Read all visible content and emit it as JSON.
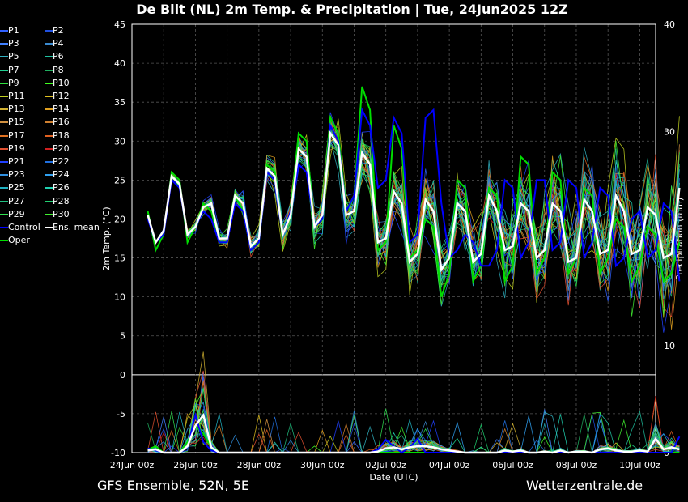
{
  "title": "De Bilt  (NL)  2m Temp. & Precipitation | Tue, 24Jun2025 12Z",
  "footer_left": "GFS Ensemble, 52N, 5E",
  "footer_right": "Wetterzentrale.de",
  "colors": {
    "background": "#000000",
    "mean": "#ffffff",
    "control": "#0000ff",
    "oper": "#00dd00"
  },
  "chart_data": {
    "type": "line",
    "x_unit": "hours since 24Jun 00z (3-hourly)",
    "x_ticks": [
      "24Jun 00z",
      "26Jun 00z",
      "28Jun 00z",
      "30Jun 00z",
      "02Jul 00z",
      "04Jul 00z",
      "06Jul 00z",
      "08Jul 00z",
      "10Jul 00z"
    ],
    "xlabel": "Date (UTC)",
    "ylabel_left": "2m Temp. (°C)",
    "ylabel_right": "Precipitation (mm)",
    "ylim_left": [
      -10,
      45
    ],
    "ylim_right": [
      0,
      40
    ],
    "yticks_left": [
      "45",
      "40",
      "35",
      "30",
      "25",
      "20",
      "15",
      "10",
      "5",
      "0",
      "-5",
      "-10"
    ],
    "yticks_right": [
      "40",
      "30",
      "20",
      "10",
      "0"
    ],
    "grid": true,
    "start_hour": 12,
    "temperature": {
      "control": [
        20,
        17,
        18,
        25,
        24,
        18,
        19,
        21,
        20,
        17,
        17,
        22,
        21,
        16,
        17,
        26,
        25,
        18,
        21,
        27,
        26,
        19,
        20,
        32,
        30,
        21,
        23,
        34,
        32,
        24,
        25,
        33,
        31,
        17,
        18,
        33,
        34,
        22,
        15,
        16,
        18,
        17,
        14,
        14,
        16,
        25,
        24,
        15,
        17,
        25,
        25,
        16,
        17,
        25,
        24,
        15,
        17,
        24,
        23,
        14,
        15,
        20,
        21,
        15,
        16,
        22,
        21,
        12,
        14,
        19
      ],
      "oper": [
        21,
        16,
        18,
        26,
        25,
        17,
        19,
        22,
        21,
        17,
        17,
        23,
        21,
        16,
        17,
        27,
        26,
        18,
        21,
        31,
        30,
        19,
        20,
        33,
        31,
        21,
        23,
        37,
        34,
        16,
        17,
        32,
        29,
        15,
        16,
        20,
        19,
        10,
        13,
        25,
        24,
        12,
        14,
        24,
        23,
        12,
        14,
        28,
        27,
        13,
        15,
        26,
        25,
        13,
        15,
        24,
        23,
        13,
        15,
        20,
        19,
        12,
        14,
        19,
        18,
        12,
        13,
        17,
        16,
        21
      ],
      "mean": [
        20.5,
        17,
        18.5,
        25.5,
        24.5,
        18,
        19,
        21.5,
        22,
        17.5,
        17.5,
        23,
        22,
        16.5,
        17.5,
        26.5,
        25.5,
        18,
        20.5,
        29,
        28,
        19,
        20.5,
        31,
        29.5,
        20.5,
        21,
        28.5,
        27,
        17,
        17.5,
        23.5,
        22,
        14.5,
        15.5,
        22.5,
        21,
        13.5,
        15,
        22,
        21,
        14.5,
        15.5,
        23,
        21,
        16,
        16.5,
        22,
        21,
        15,
        16,
        22,
        21,
        14.5,
        15,
        22.5,
        21,
        15.5,
        16,
        23,
        21,
        15.5,
        16,
        21.5,
        20.5,
        15,
        15.5,
        24
      ]
    },
    "precipitation": {
      "control": [
        0.4,
        0.2,
        0,
        0,
        0,
        0.5,
        3.5,
        1,
        0.2,
        0,
        0,
        0,
        0,
        0,
        0,
        0,
        0,
        0,
        0,
        0,
        0,
        0,
        0,
        0,
        0,
        0,
        0,
        0,
        0,
        0.3,
        1.2,
        0.6,
        0,
        0.5,
        1.3,
        0,
        0,
        0,
        0,
        0,
        0,
        0,
        0,
        0,
        0,
        0,
        0,
        0,
        0,
        0,
        0,
        0,
        0,
        0,
        0,
        0,
        0,
        0,
        0,
        0,
        0,
        0,
        0,
        0,
        0,
        0,
        0,
        1.5,
        0.5,
        3
      ],
      "oper": [
        0.3,
        0.6,
        0,
        0,
        0,
        1,
        2.5,
        1.8,
        0.5,
        0,
        0,
        0,
        0,
        0,
        0,
        0,
        0,
        0,
        0,
        0,
        0,
        0,
        0,
        0,
        0,
        0,
        0,
        0,
        0,
        0,
        0,
        0,
        0,
        0,
        0,
        0,
        0,
        0,
        0,
        0,
        0,
        0,
        0,
        0,
        0,
        0,
        0,
        0,
        0,
        0,
        0,
        0,
        0,
        0,
        0,
        0,
        0,
        0,
        0,
        0,
        0,
        0,
        0,
        0,
        0,
        0,
        0,
        0,
        0,
        0
      ],
      "mean": [
        0.2,
        0.3,
        0,
        0,
        0,
        0.6,
        2.5,
        3.5,
        0.5,
        0,
        0,
        0,
        0,
        0,
        0,
        0,
        0,
        0,
        0,
        0,
        0,
        0,
        0,
        0,
        0,
        0,
        0,
        0,
        0,
        0.1,
        0.4,
        0.5,
        0.3,
        0.5,
        0.6,
        0.6,
        0.5,
        0.3,
        0.2,
        0.1,
        0,
        0,
        0,
        0,
        0,
        0.2,
        0.1,
        0.2,
        0,
        0,
        0.1,
        0,
        0.2,
        0,
        0.1,
        0.1,
        0,
        0.3,
        0.4,
        0.2,
        0.1,
        0.1,
        0.2,
        0.1,
        1.3,
        0.3,
        0.5,
        0.3,
        0.4,
        0.3
      ]
    },
    "series": [
      "P1",
      "P2",
      "P3",
      "P4",
      "P5",
      "P6",
      "P7",
      "P8",
      "P9",
      "P10",
      "P11",
      "P12",
      "P13",
      "P14",
      "P15",
      "P16",
      "P17",
      "P18",
      "P19",
      "P20",
      "P21",
      "P22",
      "P23",
      "P24",
      "P25",
      "P26",
      "P27",
      "P28",
      "P29",
      "P30",
      "Control",
      "Ens. mean",
      "Oper"
    ]
  },
  "legend": [
    {
      "label": "P1",
      "color": "#3060ff"
    },
    {
      "label": "P2",
      "color": "#2050e0"
    },
    {
      "label": "P3",
      "color": "#4080ff"
    },
    {
      "label": "P4",
      "color": "#3a8ad0"
    },
    {
      "label": "P5",
      "color": "#30b0c0"
    },
    {
      "label": "P6",
      "color": "#20c0a0"
    },
    {
      "label": "P7",
      "color": "#20d090"
    },
    {
      "label": "P8",
      "color": "#20b060"
    },
    {
      "label": "P9",
      "color": "#30e040"
    },
    {
      "label": "P10",
      "color": "#40ff20"
    },
    {
      "label": "P11",
      "color": "#c0d020"
    },
    {
      "label": "P12",
      "color": "#e0c020"
    },
    {
      "label": "P13",
      "color": "#d0b030"
    },
    {
      "label": "P14",
      "color": "#e0a020"
    },
    {
      "label": "P15",
      "color": "#d09040"
    },
    {
      "label": "P16",
      "color": "#d08030"
    },
    {
      "label": "P17",
      "color": "#e07020"
    },
    {
      "label": "P18",
      "color": "#e06020"
    },
    {
      "label": "P19",
      "color": "#e05030"
    },
    {
      "label": "P20",
      "color": "#d02020"
    },
    {
      "label": "P21",
      "color": "#2040ff"
    },
    {
      "label": "P22",
      "color": "#2070e0"
    },
    {
      "label": "P23",
      "color": "#3090e0"
    },
    {
      "label": "P24",
      "color": "#30a0f0"
    },
    {
      "label": "P25",
      "color": "#20b0c0"
    },
    {
      "label": "P26",
      "color": "#20d0b0"
    },
    {
      "label": "P27",
      "color": "#20c080"
    },
    {
      "label": "P28",
      "color": "#20d070"
    },
    {
      "label": "P29",
      "color": "#30e050"
    },
    {
      "label": "P30",
      "color": "#40f030"
    },
    {
      "label": "Control",
      "color": "#0000ff"
    },
    {
      "label": "Ens. mean",
      "color": "#ffffff"
    },
    {
      "label": "Oper",
      "color": "#00dd00"
    }
  ]
}
